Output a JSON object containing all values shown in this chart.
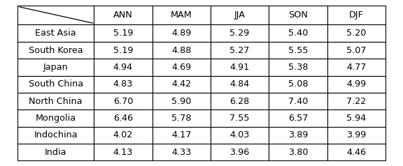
{
  "columns": [
    "",
    "ANN",
    "MAM",
    "JJA",
    "SON",
    "DJF"
  ],
  "rows": [
    "East Asia",
    "South Korea",
    "Japan",
    "South China",
    "North China",
    "Mongolia",
    "Indochina",
    "India"
  ],
  "values": [
    [
      5.19,
      4.89,
      5.29,
      5.4,
      5.2
    ],
    [
      5.19,
      4.88,
      5.27,
      5.55,
      5.07
    ],
    [
      4.94,
      4.69,
      4.91,
      5.38,
      4.77
    ],
    [
      4.83,
      4.42,
      4.84,
      5.08,
      4.99
    ],
    [
      6.7,
      5.9,
      6.28,
      7.4,
      7.22
    ],
    [
      6.46,
      5.78,
      7.55,
      6.57,
      5.94
    ],
    [
      4.02,
      4.17,
      4.03,
      3.89,
      3.99
    ],
    [
      4.13,
      4.33,
      3.96,
      3.8,
      4.46
    ]
  ],
  "fig_width": 5.76,
  "fig_height": 2.38,
  "dpi": 100,
  "header_bg": "#ffffff",
  "cell_bg": "#ffffff",
  "border_color": "#000000",
  "text_color": "#000000",
  "font_size": 9.2
}
